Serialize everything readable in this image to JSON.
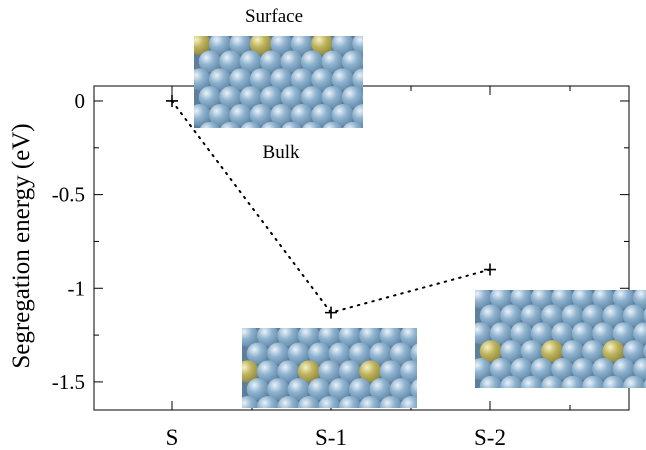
{
  "chart_data": {
    "type": "line",
    "categories": [
      "S",
      "S-1",
      "S-2"
    ],
    "series": [
      {
        "values": [
          0,
          -1.13,
          -0.9
        ],
        "marker": "plus",
        "line": "dotted",
        "color": "#000000"
      }
    ],
    "ylabel": "Segregation energy (eV)",
    "ylim": [
      -1.65,
      0.08
    ],
    "yticks": [
      0,
      -0.5,
      -1,
      -1.5
    ],
    "ytick_labels": [
      "0",
      "-0.5",
      "-1",
      "-1.5"
    ],
    "annotations": {
      "top_label": "Surface",
      "bottom_label": "Bulk"
    },
    "grid": false
  },
  "colors": {
    "atom_host": "#7fa6c4",
    "atom_host_highlight": "#e8f1f8",
    "atom_solute": "#b8ae58",
    "atom_solute_highlight": "#f4f0c2"
  }
}
